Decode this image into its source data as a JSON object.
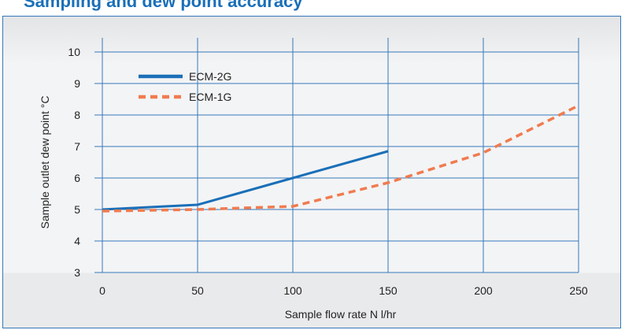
{
  "colors": {
    "accent": "#1a6fb8",
    "grid": "#3479bd",
    "series1": "#1a6fb8",
    "series2": "#f07b4f"
  },
  "chart_data": {
    "type": "line",
    "title": "",
    "xlabel": "Sample flow rate N l/hr",
    "ylabel": "Sample outlet dew point °C",
    "xlim": [
      0,
      250
    ],
    "ylim": [
      3,
      10
    ],
    "xticks": [
      0,
      50,
      100,
      150,
      200,
      250
    ],
    "yticks": [
      3,
      4,
      5,
      6,
      7,
      8,
      9,
      10
    ],
    "grid": true,
    "legend_position": "top-left",
    "series": [
      {
        "name": "ECM-2G",
        "style": "solid",
        "color": "#1a6fb8",
        "x": [
          0,
          50,
          100,
          150
        ],
        "y": [
          5.0,
          5.15,
          6.0,
          6.85
        ]
      },
      {
        "name": "ECM-1G",
        "style": "dashed",
        "color": "#f07b4f",
        "x": [
          0,
          50,
          100,
          150,
          200,
          250
        ],
        "y": [
          4.95,
          5.0,
          5.1,
          5.85,
          6.8,
          8.3
        ]
      }
    ]
  }
}
